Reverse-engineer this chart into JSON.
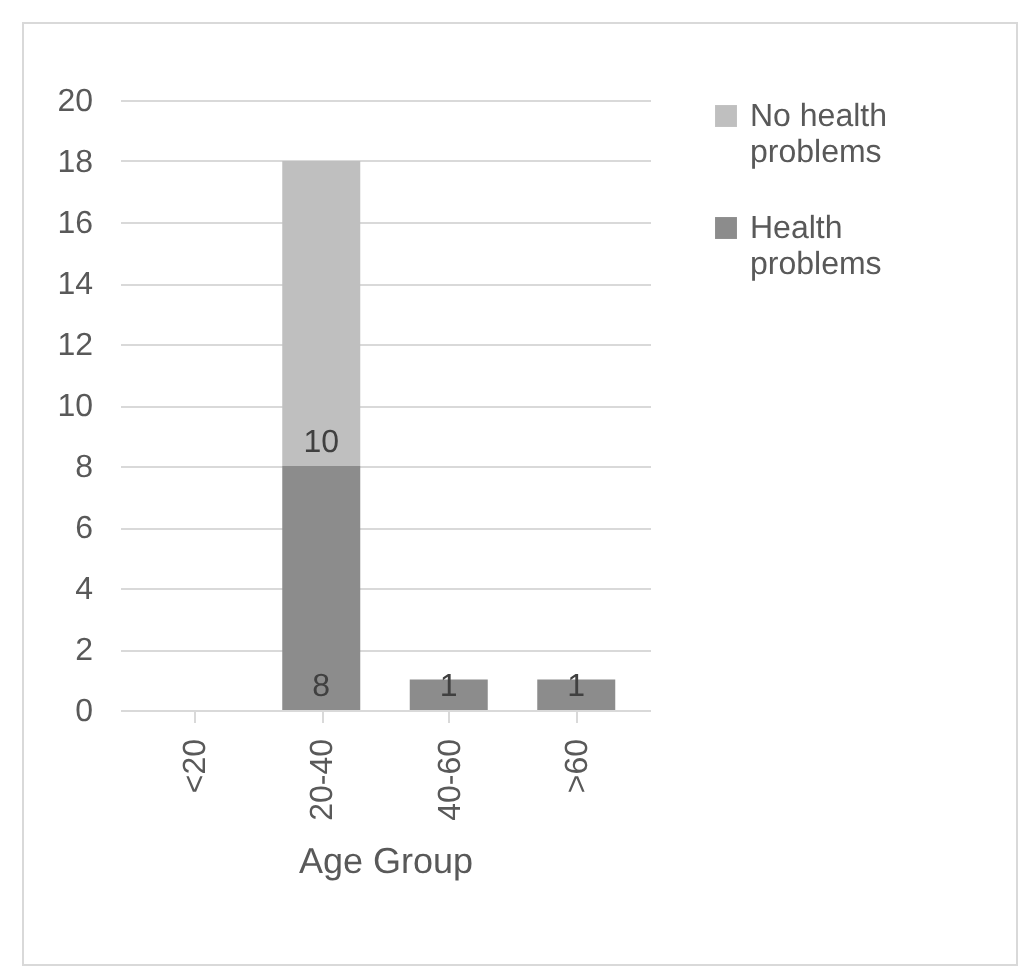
{
  "chart_data": {
    "type": "bar",
    "xlabel": "Age Group",
    "categories": [
      "<20",
      "20-40",
      "40-60",
      ">60"
    ],
    "stacked": true,
    "series": [
      {
        "name": "Health problems",
        "color": "#8c8c8c",
        "values": [
          0,
          8,
          1,
          1
        ],
        "value_labels": [
          null,
          "8",
          "1",
          "1"
        ]
      },
      {
        "name": "No health problems",
        "color": "#bfbfbf",
        "values": [
          0,
          10,
          0,
          0
        ],
        "value_labels": [
          null,
          "10",
          null,
          null
        ]
      }
    ],
    "ylim": [
      0,
      20
    ],
    "yticks": [
      0,
      2,
      4,
      6,
      8,
      10,
      12,
      14,
      16,
      18,
      20
    ],
    "grid": "y",
    "legend": "right"
  }
}
